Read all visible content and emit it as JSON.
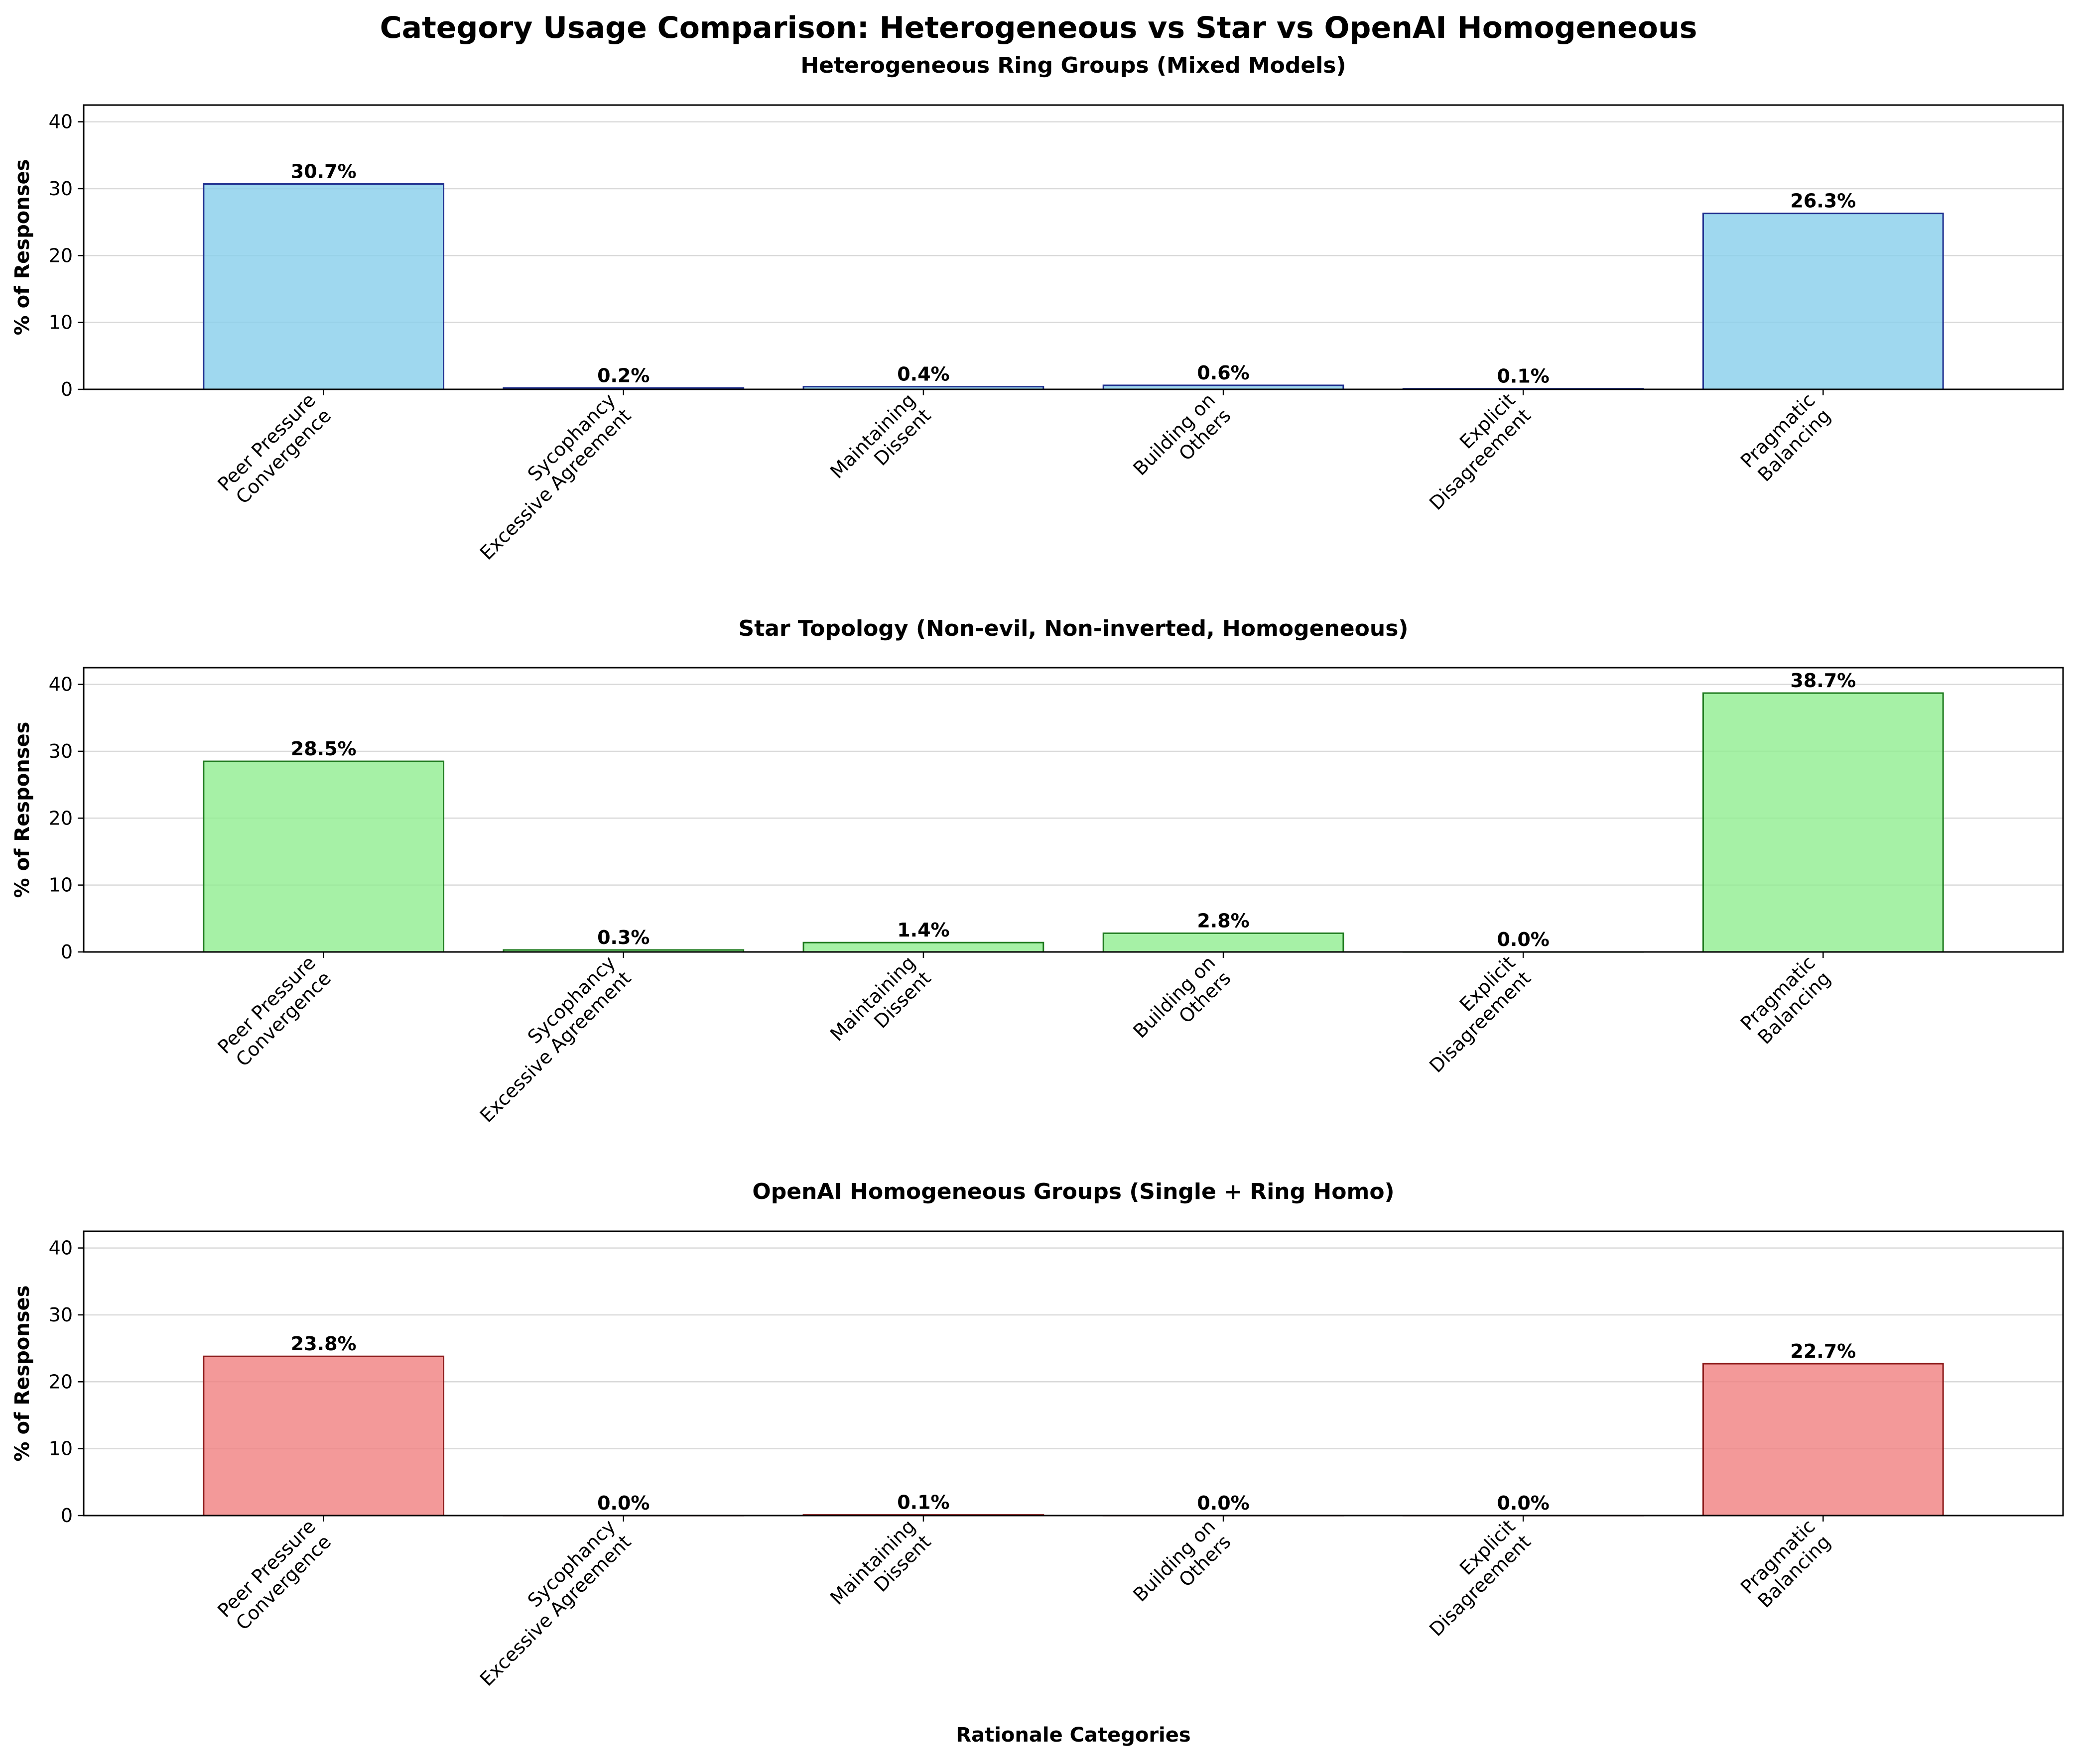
{
  "figure": {
    "title": "Category Usage Comparison: Heterogeneous vs Star vs OpenAI Homogeneous"
  },
  "chart_data": [
    {
      "type": "bar",
      "title": "Heterogeneous Ring Groups (Mixed Models)",
      "xlabel": "",
      "ylabel": "% of Responses",
      "ylim": [
        0,
        42.5
      ],
      "yticks": [
        0,
        10,
        20,
        30,
        40
      ],
      "grid": "y",
      "categories": [
        [
          "Peer Pressure",
          "Convergence"
        ],
        [
          "Sycophancy",
          "Excessive Agreement"
        ],
        [
          "Maintaining",
          "Dissent"
        ],
        [
          "Building on",
          "Others"
        ],
        [
          "Explicit",
          "Disagreement"
        ],
        [
          "Pragmatic",
          "Balancing"
        ]
      ],
      "values": [
        30.7,
        0.2,
        0.4,
        0.6,
        0.1,
        26.3
      ],
      "value_labels": [
        "30.7%",
        "0.2%",
        "0.4%",
        "0.6%",
        "0.1%",
        "26.3%"
      ],
      "colors": {
        "fill": "#87ceeb",
        "edge": "#1f2f8f"
      }
    },
    {
      "type": "bar",
      "title": "Star Topology (Non-evil, Non-inverted, Homogeneous)",
      "xlabel": "",
      "ylabel": "% of Responses",
      "ylim": [
        0,
        42.5
      ],
      "yticks": [
        0,
        10,
        20,
        30,
        40
      ],
      "grid": "y",
      "categories": [
        [
          "Peer Pressure",
          "Convergence"
        ],
        [
          "Sycophancy",
          "Excessive Agreement"
        ],
        [
          "Maintaining",
          "Dissent"
        ],
        [
          "Building on",
          "Others"
        ],
        [
          "Explicit",
          "Disagreement"
        ],
        [
          "Pragmatic",
          "Balancing"
        ]
      ],
      "values": [
        28.5,
        0.3,
        1.4,
        2.8,
        0.0,
        38.7
      ],
      "value_labels": [
        "28.5%",
        "0.3%",
        "1.4%",
        "2.8%",
        "0.0%",
        "38.7%"
      ],
      "colors": {
        "fill": "#90ee90",
        "edge": "#1e7a1e"
      }
    },
    {
      "type": "bar",
      "title": "OpenAI Homogeneous Groups (Single + Ring Homo)",
      "xlabel": "Rationale Categories",
      "ylabel": "% of Responses",
      "ylim": [
        0,
        42.5
      ],
      "yticks": [
        0,
        10,
        20,
        30,
        40
      ],
      "grid": "y",
      "categories": [
        [
          "Peer Pressure",
          "Convergence"
        ],
        [
          "Sycophancy",
          "Excessive Agreement"
        ],
        [
          "Maintaining",
          "Dissent"
        ],
        [
          "Building on",
          "Others"
        ],
        [
          "Explicit",
          "Disagreement"
        ],
        [
          "Pragmatic",
          "Balancing"
        ]
      ],
      "values": [
        23.8,
        0.0,
        0.1,
        0.0,
        0.0,
        22.7
      ],
      "value_labels": [
        "23.8%",
        "0.0%",
        "0.1%",
        "0.0%",
        "0.0%",
        "22.7%"
      ],
      "colors": {
        "fill": "#f08080",
        "edge": "#8b1a1a"
      }
    }
  ]
}
